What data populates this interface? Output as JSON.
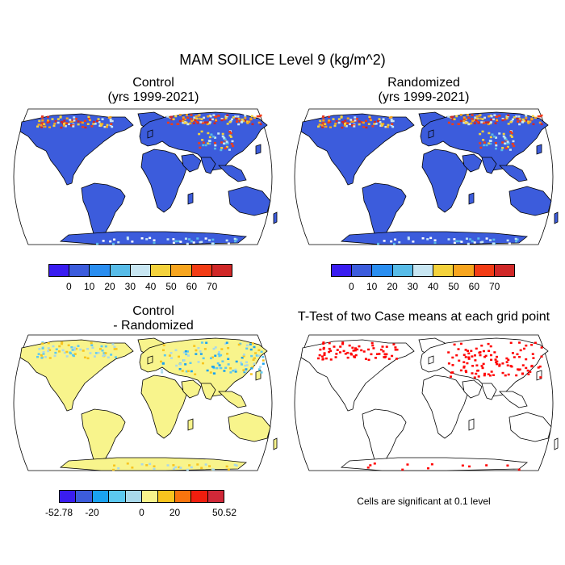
{
  "title": "MAM SOILICE Level 9 (kg/m^2)",
  "panels": {
    "control": {
      "title1": "Control",
      "title2": "(yrs 1999-2021)"
    },
    "randomized": {
      "title1": "Randomized",
      "title2": "(yrs 1999-2021)"
    },
    "difference": {
      "title1": "Control",
      "title2": "- Randomized"
    },
    "ttest": {
      "title1": "T-Test of two Case means at each grid point"
    }
  },
  "colorbars": {
    "main": {
      "colors": [
        "#3a1df0",
        "#3c5cdc",
        "#2a8ef0",
        "#58bce8",
        "#c8e6f2",
        "#f4d23c",
        "#f7a51e",
        "#f23c15",
        "#d02828"
      ],
      "labels": [
        "0",
        "10",
        "20",
        "30",
        "40",
        "50",
        "60",
        "70"
      ]
    },
    "diff": {
      "colors": [
        "#3a1df0",
        "#3c5cdc",
        "#1aa2f0",
        "#5cc8f0",
        "#a8d8ea",
        "#f8f48c",
        "#f8c41e",
        "#f8740e",
        "#f01e0e",
        "#d02838"
      ],
      "labels": [
        "-52.78",
        "-20",
        "0",
        "20",
        "50.52"
      ]
    }
  },
  "colors": {
    "land_main": "#3c5cdc",
    "land_diff": "#f8f48c",
    "significant": "#ff0000"
  },
  "note": "Cells are significant at 0.1 level"
}
